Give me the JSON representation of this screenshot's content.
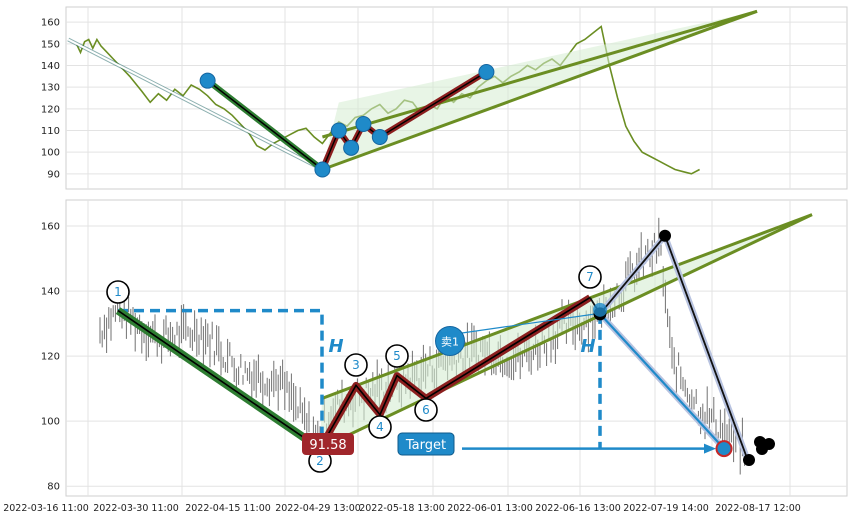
{
  "chart_data": [
    {
      "type": "line",
      "panel": "top",
      "ylim": [
        83,
        167
      ],
      "y_ticks": [
        "160",
        "150",
        "140",
        "130",
        "120",
        "110",
        "100",
        "90"
      ],
      "grid": true,
      "price_series": {
        "color": "#6b8e23",
        "x": [
          "2022-03-19",
          "2022-03-20",
          "2022-03-21",
          "2022-03-22",
          "2022-03-23",
          "2022-03-24",
          "2022-03-25",
          "2022-03-26",
          "2022-03-28",
          "2022-03-30",
          "2022-04-01",
          "2022-04-04",
          "2022-04-06",
          "2022-04-08",
          "2022-04-10",
          "2022-04-12",
          "2022-04-14",
          "2022-04-16",
          "2022-04-18",
          "2022-04-20",
          "2022-04-22",
          "2022-04-24",
          "2022-04-26",
          "2022-04-28",
          "2022-04-30",
          "2022-05-02",
          "2022-05-04",
          "2022-05-06",
          "2022-05-08",
          "2022-05-10",
          "2022-05-12",
          "2022-05-14",
          "2022-05-16",
          "2022-05-18",
          "2022-05-20",
          "2022-05-22",
          "2022-05-24",
          "2022-05-26",
          "2022-05-28",
          "2022-05-30",
          "2022-06-01",
          "2022-06-03",
          "2022-06-05",
          "2022-06-07",
          "2022-06-09",
          "2022-06-11",
          "2022-06-13",
          "2022-06-15",
          "2022-06-17",
          "2022-06-19",
          "2022-06-21",
          "2022-06-23",
          "2022-06-25",
          "2022-06-27",
          "2022-06-29",
          "2022-07-01",
          "2022-07-03",
          "2022-07-05",
          "2022-07-07",
          "2022-07-09",
          "2022-07-11",
          "2022-07-13",
          "2022-07-15",
          "2022-07-17",
          "2022-07-19",
          "2022-07-21",
          "2022-07-23",
          "2022-07-25",
          "2022-07-27",
          "2022-07-29",
          "2022-07-31",
          "2022-08-02",
          "2022-08-04",
          "2022-08-06",
          "2022-08-08",
          "2022-08-10",
          "2022-08-12",
          "2022-08-14",
          "2022-08-16",
          "2022-08-18"
        ],
        "y": [
          150,
          146,
          151,
          152,
          148,
          152,
          149,
          147,
          143,
          139,
          135,
          128,
          123,
          127,
          124,
          129,
          126,
          131,
          129,
          126,
          122,
          120,
          117,
          113,
          109,
          103,
          101,
          104,
          106,
          108,
          110,
          111,
          107,
          104,
          109,
          114,
          112,
          116,
          117,
          120,
          122,
          118,
          120,
          124,
          123,
          118,
          122,
          120,
          126,
          123,
          127,
          125,
          130,
          133,
          135,
          132,
          135,
          137,
          140,
          138,
          141,
          143,
          140,
          145,
          150,
          152,
          155,
          158,
          140,
          125,
          112,
          105,
          100,
          98,
          96,
          94,
          92,
          91,
          90,
          92
        ]
      },
      "pattern": {
        "points": [
          {
            "x": "2022-03-17",
            "y": 152
          },
          {
            "x": "2022-04-20",
            "y": 133
          },
          {
            "x": "2022-05-18",
            "y": 92
          },
          {
            "x": "2022-05-22",
            "y": 110
          },
          {
            "x": "2022-05-25",
            "y": 102
          },
          {
            "x": "2022-05-28",
            "y": 113
          },
          {
            "x": "2022-06-01",
            "y": 107
          },
          {
            "x": "2022-06-27",
            "y": 137
          }
        ]
      }
    },
    {
      "type": "line",
      "panel": "bottom",
      "ylim": [
        77,
        168
      ],
      "y_ticks": [
        "160",
        "140",
        "120",
        "100",
        "80"
      ],
      "x_ticks": [
        "2022-03-16 11:00",
        "2022-03-30 11:00",
        "2022-04-15 11:00",
        "2022-04-29 13:00",
        "2022-05-18 13:00",
        "2022-06-01 13:00",
        "2022-06-16 13:00",
        "2022-07-19 14:00",
        "2022-08-17 12:00"
      ],
      "grid": true,
      "pattern_points": [
        {
          "label": "1",
          "y": 134
        },
        {
          "label": "2",
          "y": 91.58
        },
        {
          "label": "3",
          "y": 111
        },
        {
          "label": "4",
          "y": 102
        },
        {
          "label": "5",
          "y": 114
        },
        {
          "label": "6",
          "y": 107
        },
        {
          "label": "7",
          "y": 138
        }
      ],
      "annotations": {
        "price_label": "91.58",
        "h_label_1": "H",
        "h_label_2": "H",
        "sell_label": "卖1",
        "target_label": "Target"
      },
      "projection": {
        "sell_y": 133,
        "target_y": 91.58,
        "high_y": 157,
        "low_y": 87
      },
      "colors": {
        "channel": "#6b8e23",
        "leg": "#2e7d32",
        "zigzag": "#8b1e1e",
        "accent": "#1f8ac9",
        "price_label_bg": "#a0262b"
      }
    }
  ]
}
